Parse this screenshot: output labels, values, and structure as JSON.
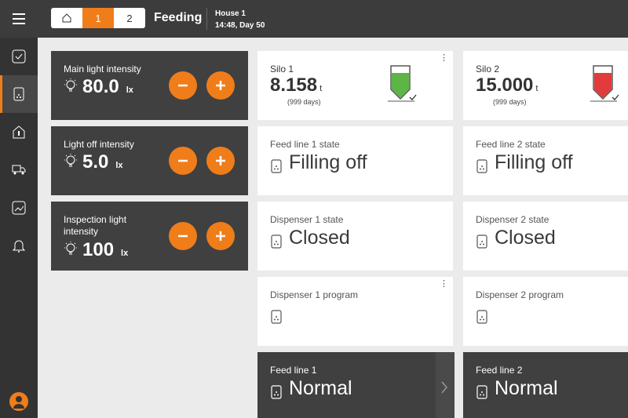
{
  "header": {
    "tabs": [
      "1",
      "2"
    ],
    "title": "Feeding",
    "location": "House 1",
    "time": "14:48, Day 50"
  },
  "light_controls": [
    {
      "label": "Main light intensity",
      "value": "80.0",
      "unit": "lx"
    },
    {
      "label": "Light off intensity",
      "value": "5.0",
      "unit": "lx"
    },
    {
      "label": "Inspection light intensity",
      "value": "100",
      "unit": "lx"
    }
  ],
  "silos": [
    {
      "name": "Silo 1",
      "amount": "8.158",
      "unit": "t",
      "days": "(999 days)"
    },
    {
      "name": "Silo 2",
      "amount": "15.000",
      "unit": "t",
      "days": "(999 days)"
    }
  ],
  "status_rows": [
    [
      {
        "title": "Feed line 1 state",
        "value": "Filling off"
      },
      {
        "title": "Feed line 2 state",
        "value": "Filling off"
      }
    ],
    [
      {
        "title": "Dispenser 1 state",
        "value": "Closed"
      },
      {
        "title": "Dispenser 2 state",
        "value": "Closed"
      }
    ],
    [
      {
        "title": "Dispenser 1 program"
      },
      {
        "title": "Dispenser 2 program"
      }
    ]
  ],
  "feed_lines": [
    {
      "title": "Feed line 1",
      "value": "Normal"
    },
    {
      "title": "Feed line 2",
      "value": "Normal"
    }
  ]
}
